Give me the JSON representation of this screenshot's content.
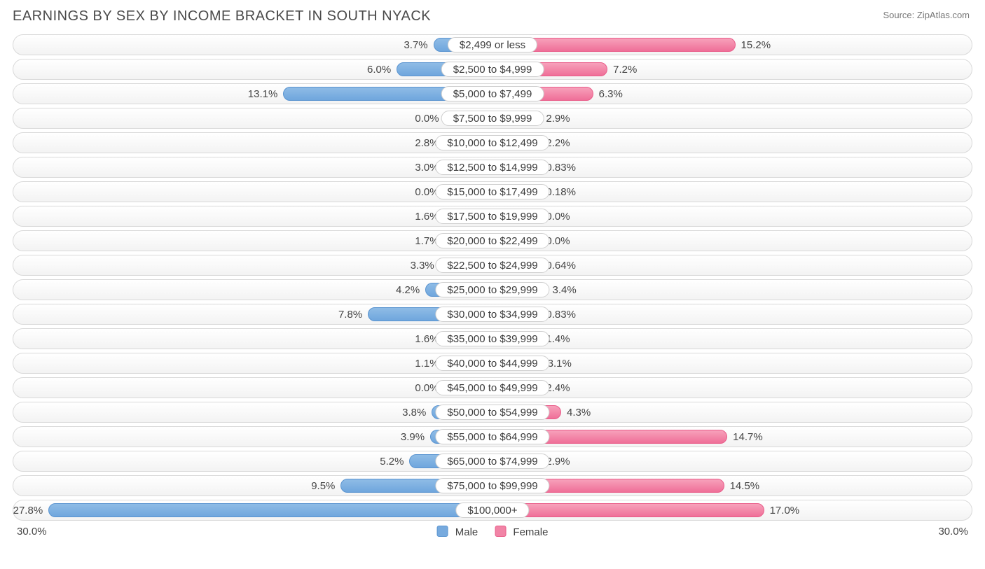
{
  "title": "EARNINGS BY SEX BY INCOME BRACKET IN SOUTH NYACK",
  "source": "Source: ZipAtlas.com",
  "chart": {
    "type": "diverging-bar",
    "axis_max": 30.0,
    "axis_label_left": "30.0%",
    "axis_label_right": "30.0%",
    "min_bar_pct": 3.0,
    "colors": {
      "male_fill_top": "#8fbce6",
      "male_fill_bottom": "#6fa6dd",
      "male_border": "#5a94d0",
      "female_fill_top": "#f7a1bb",
      "female_fill_bottom": "#ef6f98",
      "female_border": "#e95c89",
      "track_border": "#d9d9d9",
      "track_bg_top": "#ffffff",
      "track_bg_bottom": "#f3f3f3",
      "text": "#444444",
      "background": "#ffffff"
    },
    "legend": [
      {
        "key": "male",
        "label": "Male"
      },
      {
        "key": "female",
        "label": "Female"
      }
    ],
    "rows": [
      {
        "category": "$2,499 or less",
        "male": 3.7,
        "male_label": "3.7%",
        "female": 15.2,
        "female_label": "15.2%"
      },
      {
        "category": "$2,500 to $4,999",
        "male": 6.0,
        "male_label": "6.0%",
        "female": 7.2,
        "female_label": "7.2%"
      },
      {
        "category": "$5,000 to $7,499",
        "male": 13.1,
        "male_label": "13.1%",
        "female": 6.3,
        "female_label": "6.3%"
      },
      {
        "category": "$7,500 to $9,999",
        "male": 0.0,
        "male_label": "0.0%",
        "female": 2.9,
        "female_label": "2.9%"
      },
      {
        "category": "$10,000 to $12,499",
        "male": 2.8,
        "male_label": "2.8%",
        "female": 2.2,
        "female_label": "2.2%"
      },
      {
        "category": "$12,500 to $14,999",
        "male": 3.0,
        "male_label": "3.0%",
        "female": 0.83,
        "female_label": "0.83%"
      },
      {
        "category": "$15,000 to $17,499",
        "male": 0.0,
        "male_label": "0.0%",
        "female": 0.18,
        "female_label": "0.18%"
      },
      {
        "category": "$17,500 to $19,999",
        "male": 1.6,
        "male_label": "1.6%",
        "female": 0.0,
        "female_label": "0.0%"
      },
      {
        "category": "$20,000 to $22,499",
        "male": 1.7,
        "male_label": "1.7%",
        "female": 0.0,
        "female_label": "0.0%"
      },
      {
        "category": "$22,500 to $24,999",
        "male": 3.3,
        "male_label": "3.3%",
        "female": 0.64,
        "female_label": "0.64%"
      },
      {
        "category": "$25,000 to $29,999",
        "male": 4.2,
        "male_label": "4.2%",
        "female": 3.4,
        "female_label": "3.4%"
      },
      {
        "category": "$30,000 to $34,999",
        "male": 7.8,
        "male_label": "7.8%",
        "female": 0.83,
        "female_label": "0.83%"
      },
      {
        "category": "$35,000 to $39,999",
        "male": 1.6,
        "male_label": "1.6%",
        "female": 1.4,
        "female_label": "1.4%"
      },
      {
        "category": "$40,000 to $44,999",
        "male": 1.1,
        "male_label": "1.1%",
        "female": 3.1,
        "female_label": "3.1%"
      },
      {
        "category": "$45,000 to $49,999",
        "male": 0.0,
        "male_label": "0.0%",
        "female": 2.4,
        "female_label": "2.4%"
      },
      {
        "category": "$50,000 to $54,999",
        "male": 3.8,
        "male_label": "3.8%",
        "female": 4.3,
        "female_label": "4.3%"
      },
      {
        "category": "$55,000 to $64,999",
        "male": 3.9,
        "male_label": "3.9%",
        "female": 14.7,
        "female_label": "14.7%"
      },
      {
        "category": "$65,000 to $74,999",
        "male": 5.2,
        "male_label": "5.2%",
        "female": 2.9,
        "female_label": "2.9%"
      },
      {
        "category": "$75,000 to $99,999",
        "male": 9.5,
        "male_label": "9.5%",
        "female": 14.5,
        "female_label": "14.5%"
      },
      {
        "category": "$100,000+",
        "male": 27.8,
        "male_label": "27.8%",
        "female": 17.0,
        "female_label": "17.0%"
      }
    ]
  }
}
